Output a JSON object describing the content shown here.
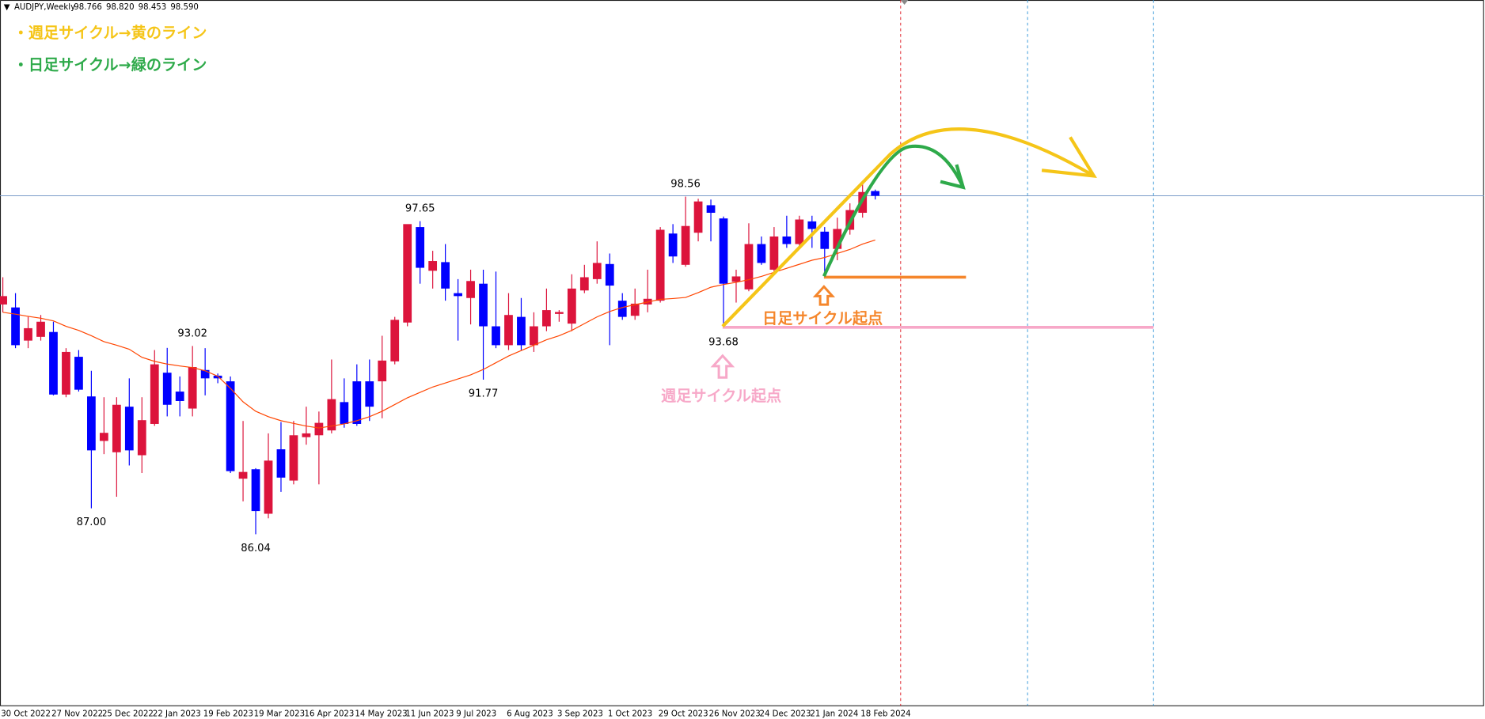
{
  "chart_data": {
    "type": "candlestick",
    "title": "AUDJPY,Weekly",
    "quote": [
      "98.766",
      "98.820",
      "98.453",
      "98.590"
    ],
    "categories": [
      "30 Oct 2022",
      null,
      null,
      null,
      "27 Nov 2022",
      null,
      null,
      null,
      "25 Dec 2022",
      null,
      null,
      null,
      "22 Jan 2023",
      null,
      null,
      null,
      "19 Feb 2023",
      null,
      null,
      null,
      "19 Mar 2023",
      null,
      null,
      null,
      "16 Apr 2023",
      null,
      null,
      null,
      "14 May 2023",
      null,
      null,
      null,
      "11 Jun 2023",
      null,
      null,
      null,
      "9 Jul 2023",
      null,
      null,
      null,
      "6 Aug 2023",
      null,
      null,
      null,
      "3 Sep 2023",
      null,
      null,
      null,
      "1 Oct 2023",
      null,
      null,
      null,
      "29 Oct 2023",
      null,
      null,
      null,
      "26 Nov 2023",
      null,
      null,
      null,
      "24 Dec 2023",
      null,
      null,
      null,
      "21 Jan 2024",
      null,
      null,
      null,
      "18 Feb 2024",
      null
    ],
    "open": [
      94.56,
      94.45,
      93.22,
      93.36,
      93.54,
      91.22,
      92.62,
      91.15,
      89.5,
      89.08,
      90.77,
      88.97,
      90.13,
      92.03,
      91.33,
      90.7,
      92.13,
      91.92,
      91.71,
      88.1,
      88.45,
      86.8,
      89.19,
      88.03,
      89.64,
      89.71,
      89.89,
      90.94,
      91.71,
      91.71,
      91.71,
      92.45,
      93.89,
      97.43,
      95.81,
      96.13,
      94.98,
      94.8,
      95.33,
      93.75,
      93.05,
      94.1,
      93.05,
      93.75,
      94.21,
      93.85,
      95.08,
      95.5,
      96.06,
      94.7,
      94.14,
      94.56,
      94.7,
      97.19,
      96.03,
      97.22,
      98.24,
      97.75,
      95.4,
      95.12,
      96.8,
      95.85,
      97.08,
      96.8,
      97.64,
      97.26,
      96.62,
      97.33,
      97.96,
      98.766
    ],
    "high": [
      95.57,
      94.98,
      94.1,
      94.17,
      93.92,
      92.94,
      92.87,
      92.1,
      91.12,
      91.12,
      91.82,
      91.12,
      92.87,
      92.95,
      91.89,
      93.02,
      92.94,
      92.0,
      91.89,
      90.24,
      88.49,
      89.78,
      90.2,
      90.24,
      90.77,
      90.59,
      92.52,
      91.82,
      92.34,
      92.52,
      93.4,
      94.1,
      97.5,
      97.65,
      96.55,
      96.8,
      95.5,
      95.85,
      95.85,
      95.78,
      94.98,
      94.8,
      94.27,
      95.15,
      94.35,
      95.68,
      96.03,
      96.9,
      96.45,
      94.98,
      95.15,
      95.85,
      97.43,
      97.54,
      98.56,
      98.48,
      98.45,
      97.82,
      95.85,
      97.57,
      97.08,
      97.43,
      97.85,
      97.85,
      97.85,
      97.43,
      97.78,
      98.31,
      99.08,
      98.82
    ],
    "low": [
      94.27,
      92.94,
      92.94,
      93.22,
      91.19,
      91.12,
      91.33,
      87.0,
      89.01,
      87.43,
      88.59,
      88.31,
      90.06,
      90.41,
      90.41,
      90.41,
      91.19,
      91.64,
      88.31,
      87.26,
      86.04,
      86.63,
      87.61,
      87.89,
      89.36,
      87.89,
      89.78,
      89.99,
      90.06,
      90.24,
      90.34,
      92.34,
      93.75,
      95.33,
      95.15,
      94.7,
      93.22,
      93.82,
      91.77,
      92.94,
      92.87,
      92.87,
      92.8,
      93.57,
      93.92,
      93.57,
      94.98,
      95.33,
      93.05,
      93.99,
      93.99,
      94.27,
      94.63,
      96.1,
      95.96,
      96.9,
      96.9,
      93.68,
      94.63,
      95.05,
      96.03,
      95.75,
      96.66,
      96.66,
      96.66,
      95.68,
      96.2,
      97.15,
      97.78,
      98.453
    ],
    "close": [
      94.87,
      93.05,
      93.68,
      93.92,
      91.22,
      92.8,
      91.4,
      89.15,
      89.8,
      90.84,
      89.15,
      90.27,
      92.34,
      90.84,
      90.98,
      92.24,
      91.82,
      91.82,
      88.38,
      88.35,
      86.9,
      88.77,
      88.14,
      89.71,
      89.78,
      90.17,
      91.05,
      90.13,
      90.13,
      90.77,
      92.48,
      93.99,
      97.54,
      95.92,
      96.17,
      95.15,
      94.87,
      95.43,
      93.75,
      93.05,
      94.17,
      93.05,
      93.75,
      94.35,
      94.28,
      95.15,
      95.57,
      96.1,
      95.26,
      94.1,
      94.59,
      94.77,
      97.33,
      96.34,
      97.47,
      98.38,
      97.96,
      95.33,
      95.6,
      96.8,
      96.1,
      97.08,
      96.8,
      97.71,
      97.36,
      96.62,
      97.36,
      98.06,
      98.73,
      98.59
    ],
    "up_color": "#dc143c",
    "down_color": "#0000ff",
    "ma": {
      "color": "#ff4500",
      "values": [
        94.27,
        94.2,
        94.12,
        94.05,
        93.95,
        93.75,
        93.6,
        93.4,
        93.18,
        93.05,
        92.9,
        92.6,
        92.45,
        92.35,
        92.28,
        92.22,
        92.1,
        91.9,
        91.45,
        90.95,
        90.6,
        90.4,
        90.25,
        90.15,
        90.05,
        89.98,
        90.05,
        90.13,
        90.25,
        90.4,
        90.6,
        90.85,
        91.1,
        91.3,
        91.5,
        91.65,
        91.8,
        91.95,
        92.15,
        92.4,
        92.65,
        92.85,
        93.05,
        93.25,
        93.4,
        93.6,
        93.85,
        94.1,
        94.3,
        94.45,
        94.55,
        94.65,
        94.75,
        94.78,
        94.82,
        95.0,
        95.2,
        95.3,
        95.38,
        95.48,
        95.6,
        95.75,
        95.9,
        96.05,
        96.2,
        96.3,
        96.45,
        96.6,
        96.8,
        96.95
      ]
    },
    "current_price": 98.59,
    "ylim": [
      79.68,
      105.85
    ],
    "annotations": [
      {
        "text": "87.00",
        "at": 7,
        "value": 87.0
      },
      {
        "text": "93.02",
        "at": 15,
        "value": 93.02
      },
      {
        "text": "86.04",
        "at": 20,
        "value": 86.04
      },
      {
        "text": "97.65",
        "at": 33,
        "value": 97.65
      },
      {
        "text": "91.77",
        "at": 38,
        "value": 91.77
      },
      {
        "text": "98.56",
        "at": 54,
        "value": 98.56
      },
      {
        "text": "93.68",
        "at": 57,
        "value": 93.68
      }
    ],
    "notes": [
      {
        "text": "・週足サイクル→黄のライン",
        "color": "#f5c518"
      },
      {
        "text": "・日足サイクル→緑のライン",
        "color": "#2eaa4a"
      }
    ],
    "markers": [
      {
        "text": "日足サイクル起点",
        "color": "#f5862b"
      },
      {
        "text": "週足サイクル起点",
        "color": "#f7a8c8"
      }
    ]
  }
}
